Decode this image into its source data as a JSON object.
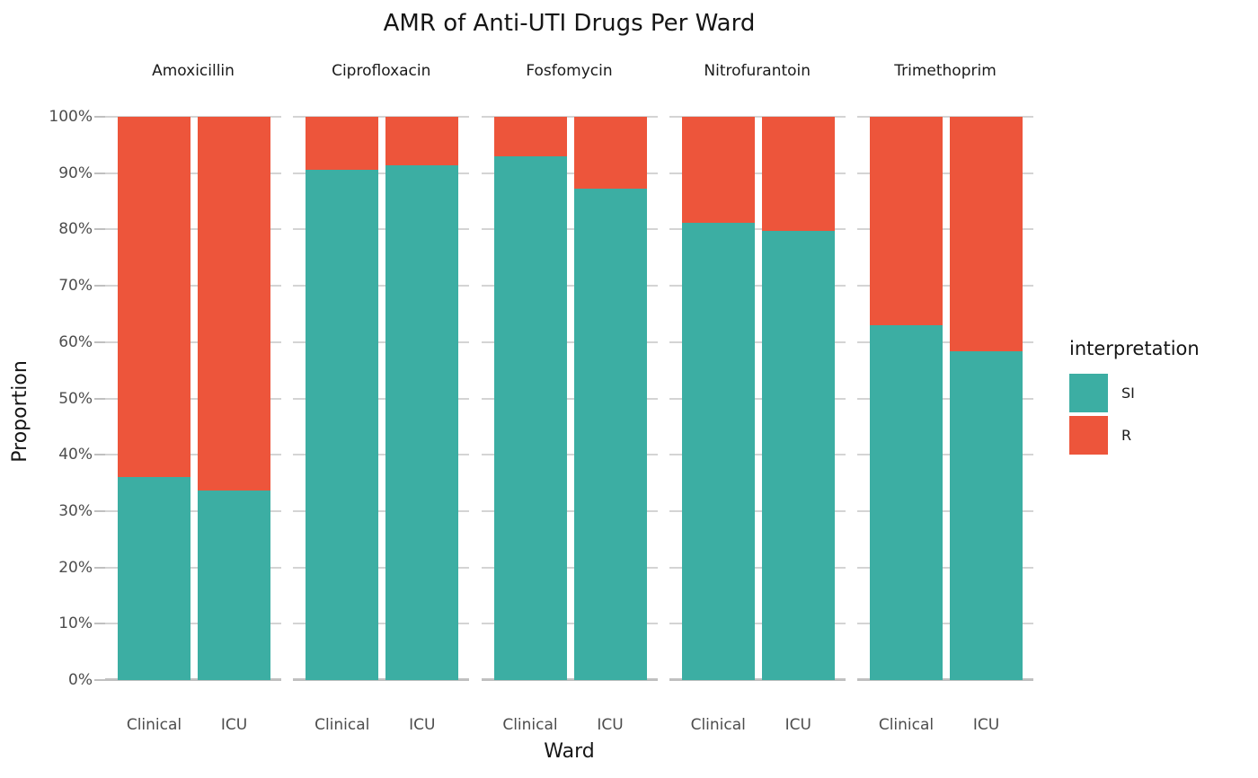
{
  "title": "AMR of Anti-UTI Drugs Per Ward",
  "colors": {
    "si": "#3CAEA3",
    "r": "#ED553B",
    "gridline": "#d4d4d4",
    "baseline": "#c0c0c0",
    "tick": "#c0c0c0",
    "axis_text": "#4d4d4d",
    "title_text": "#161616"
  },
  "legend": {
    "title": "interpretation",
    "items": [
      {
        "label": "SI",
        "color_key": "si"
      },
      {
        "label": "R",
        "color_key": "r"
      }
    ]
  },
  "chart_data": {
    "type": "bar",
    "stacked": true,
    "title": "AMR of Anti-UTI Drugs Per Ward",
    "xlabel": "Ward",
    "ylabel": "Proportion",
    "ylim": [
      0,
      100
    ],
    "y_ticks": [
      "0%",
      "10%",
      "20%",
      "30%",
      "40%",
      "50%",
      "60%",
      "70%",
      "80%",
      "90%",
      "100%"
    ],
    "categories": [
      "Clinical",
      "ICU"
    ],
    "series_names": [
      "SI",
      "R"
    ],
    "facets": [
      {
        "drug": "Amoxicillin",
        "bars": [
          {
            "ward": "Clinical",
            "SI": 36.0,
            "R": 64.0
          },
          {
            "ward": "ICU",
            "SI": 33.7,
            "R": 66.3
          }
        ]
      },
      {
        "drug": "Ciprofloxacin",
        "bars": [
          {
            "ward": "Clinical",
            "SI": 90.6,
            "R": 9.4
          },
          {
            "ward": "ICU",
            "SI": 91.4,
            "R": 8.6
          }
        ]
      },
      {
        "drug": "Fosfomycin",
        "bars": [
          {
            "ward": "Clinical",
            "SI": 93.0,
            "R": 7.0
          },
          {
            "ward": "ICU",
            "SI": 87.2,
            "R": 12.8
          }
        ]
      },
      {
        "drug": "Nitrofurantoin",
        "bars": [
          {
            "ward": "Clinical",
            "SI": 81.2,
            "R": 18.8
          },
          {
            "ward": "ICU",
            "SI": 79.7,
            "R": 20.3
          }
        ]
      },
      {
        "drug": "Trimethoprim",
        "bars": [
          {
            "ward": "Clinical",
            "SI": 63.0,
            "R": 37.0
          },
          {
            "ward": "ICU",
            "SI": 58.4,
            "R": 41.6
          }
        ]
      }
    ]
  }
}
